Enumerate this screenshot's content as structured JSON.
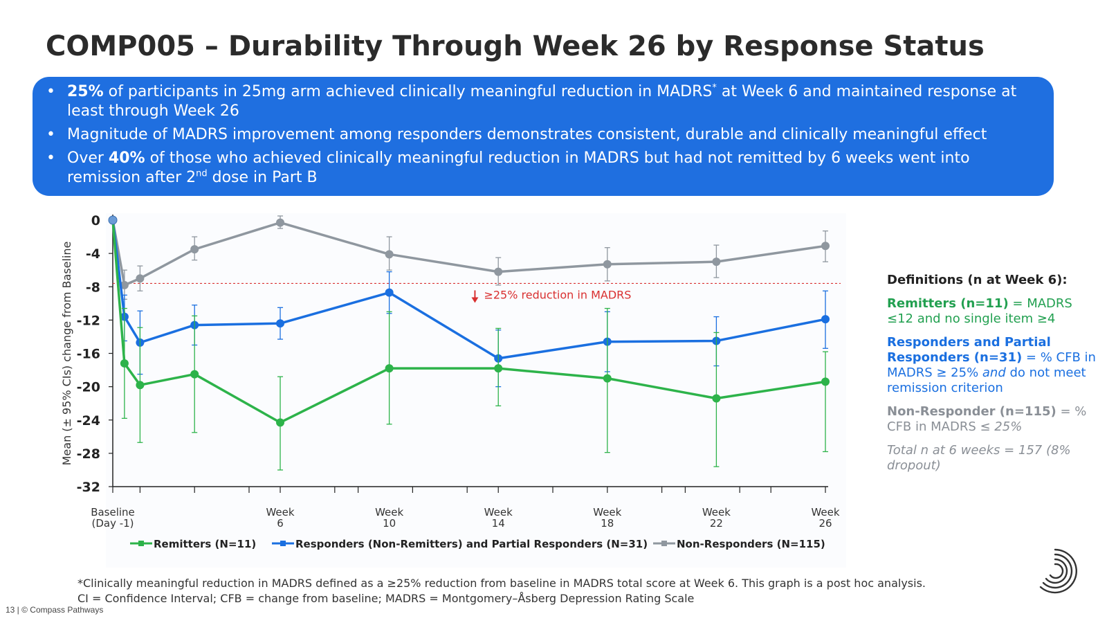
{
  "title": "COMP005 – Durability Through Week 26 by Response Status",
  "banner": {
    "b1_bold": "25%",
    "b1_text": " of participants in 25mg arm achieved clinically meaningful reduction in MADRS",
    "b1_sup": "*",
    "b1_text2": " at Week 6 and maintained response at least through Week 26",
    "b2_text": "Magnitude of MADRS improvement among responders demonstrates consistent, durable and clinically meaningful effect",
    "b3_pre": "Over ",
    "b3_bold": "40%",
    "b3_text": " of those who achieved clinically meaningful reduction in MADRS but had not remitted by 6 weeks went into remission after 2",
    "b3_sup": "nd",
    "b3_text2": " dose in Part B",
    "bullet": "•"
  },
  "definitions": {
    "heading": "Definitions (n at Week 6):",
    "remitters_bold": "Remitters (n=11)",
    "remitters_text": " = MADRS ≤12 and no single item ≥4",
    "responders_bold": "Responders and Partial Responders (n=31)",
    "responders_text": " = % CFB in MADRS ≥ 25% ",
    "responders_and": "and",
    "responders_text2": " do not meet remission criterion",
    "nonresp_bold": "Non-Responder (n=115)",
    "nonresp_text": " = % CFB in MADRS ",
    "nonresp_em": "≤ 25%",
    "total": "Total n at 6 weeks = 157 (8% dropout)"
  },
  "footnote": {
    "line1": "*Clinically meaningful reduction in MADRS defined as a ≥25% reduction from baseline in MADRS total score at Week 6.  This graph is a post hoc analysis.",
    "line2": "CI = Confidence Interval; CFB = change from baseline; MADRS = Montgomery–Åsberg Depression Rating Scale"
  },
  "page_footer": "13 | © Compass Pathways",
  "chart_data": {
    "type": "line",
    "ylabel": "Mean (± 95% CIs) change from Baseline",
    "ylim": [
      -32,
      0
    ],
    "yticks": [
      0,
      -4,
      -8,
      -12,
      -16,
      -20,
      -24,
      -28,
      -32
    ],
    "xlim": [
      -1,
      182
    ],
    "xtick_positions": [
      -1,
      6,
      20,
      34,
      42,
      56,
      62,
      76,
      90,
      98,
      112,
      126,
      140,
      146,
      160,
      168,
      182
    ],
    "xtick_labels": [
      {
        "x": -1,
        "line1": "Baseline",
        "line2": "(Day -1)"
      },
      {
        "x": 42,
        "line1": "Week",
        "line2": "6"
      },
      {
        "x": 70,
        "line1": "Week",
        "line2": "10"
      },
      {
        "x": 98,
        "line1": "Week",
        "line2": "14"
      },
      {
        "x": 126,
        "line1": "Week",
        "line2": "18"
      },
      {
        "x": 154,
        "line1": "Week",
        "line2": "22"
      },
      {
        "x": 182,
        "line1": "Week",
        "line2": "26"
      }
    ],
    "threshold": {
      "y": -7.6,
      "label": "≥25% reduction in MADRS",
      "color": "#d93030"
    },
    "series": [
      {
        "name": "Non-Responders (N=115)",
        "color": "#8f979f",
        "x": [
          -1,
          2,
          6,
          20,
          42,
          70,
          98,
          126,
          154,
          182
        ],
        "y": [
          0,
          -7.8,
          -7.0,
          -3.5,
          -0.3,
          -4.1,
          -6.2,
          -5.3,
          -5.0,
          -3.1
        ],
        "lo": [
          0,
          -9.5,
          -8.5,
          -4.8,
          -1.0,
          -6.0,
          -7.8,
          -7.3,
          -6.9,
          -5.0
        ],
        "hi": [
          0,
          -6.0,
          -5.5,
          -2.0,
          0.5,
          -2.0,
          -4.5,
          -3.3,
          -3.0,
          -1.3
        ]
      },
      {
        "name": "Responders (Non-Remitters) and Partial Responders (N=31)",
        "color": "#1a6fe0",
        "x": [
          -1,
          2,
          6,
          20,
          42,
          70,
          98,
          126,
          154,
          182
        ],
        "y": [
          0,
          -11.6,
          -14.7,
          -12.6,
          -12.4,
          -8.7,
          -16.6,
          -14.6,
          -14.5,
          -11.9
        ],
        "lo": [
          0,
          -14.5,
          -18.5,
          -15.0,
          -14.3,
          -11.2,
          -20.0,
          -18.2,
          -17.5,
          -15.4
        ],
        "hi": [
          0,
          -9.0,
          -10.9,
          -10.2,
          -10.5,
          -6.2,
          -13.2,
          -11.0,
          -11.6,
          -8.5
        ]
      },
      {
        "name": "Remitters (N=11)",
        "color": "#2db34a",
        "x": [
          -1,
          2,
          6,
          20,
          42,
          70,
          98,
          126,
          154,
          182
        ],
        "y": [
          0,
          -17.2,
          -19.8,
          -18.5,
          -24.3,
          -17.8,
          -17.8,
          -19.0,
          -21.4,
          -19.4
        ],
        "lo": [
          0,
          -23.8,
          -26.7,
          -25.5,
          -30.0,
          -24.5,
          -22.3,
          -27.9,
          -29.6,
          -27.8
        ],
        "hi": [
          0,
          -10.6,
          -12.9,
          -11.5,
          -18.8,
          -11.0,
          -13.0,
          -10.6,
          -13.5,
          -15.8
        ]
      }
    ],
    "legend": [
      {
        "label": "Remitters (N=11)",
        "color": "#2db34a"
      },
      {
        "label": "Responders (Non-Remitters) and Partial Responders (N=31)",
        "color": "#1a6fe0"
      },
      {
        "label": "Non-Responders (N=115)",
        "color": "#8f979f"
      }
    ],
    "legend_position": "bottom"
  }
}
